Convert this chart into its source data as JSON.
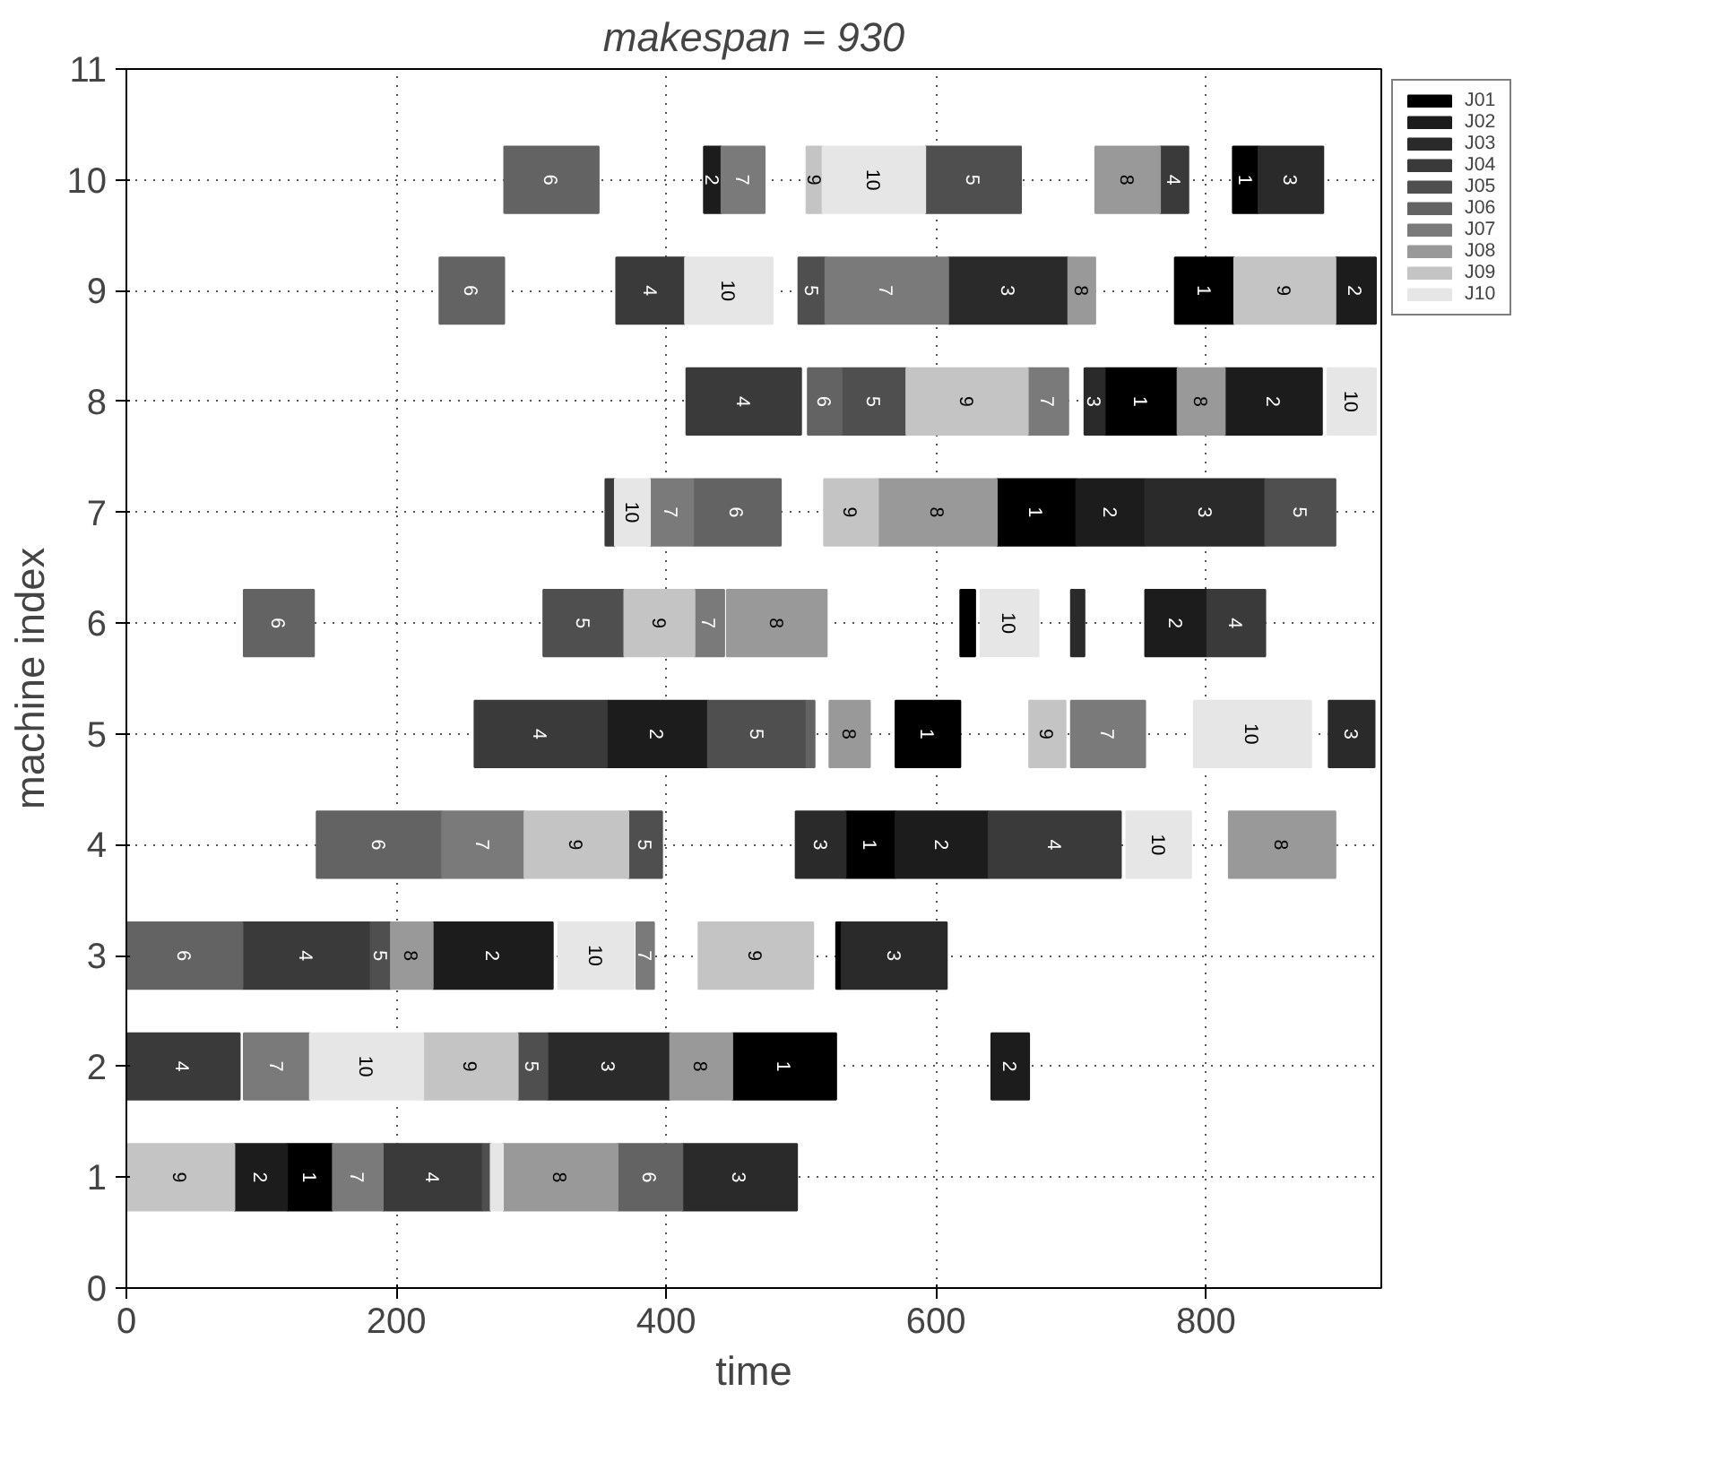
{
  "chart_data": {
    "type": "bar",
    "orientation": "horizontal",
    "title": "makespan = 930",
    "xlabel": "time",
    "ylabel": "machine index",
    "xlim": [
      0,
      930
    ],
    "ylim": [
      0,
      11
    ],
    "xticks": [
      0,
      200,
      400,
      600,
      800
    ],
    "yticks": [
      0,
      1,
      2,
      3,
      4,
      5,
      6,
      7,
      8,
      9,
      10,
      11
    ],
    "grid": true,
    "legend": "right",
    "series": [
      {
        "name": "J01",
        "color": "#000000",
        "x": [
          10,
          9,
          8,
          7,
          6,
          5,
          4,
          3,
          2,
          1
        ],
        "base": [
          820,
          777,
          725,
          645,
          618,
          570,
          533,
          526,
          449,
          119
        ],
        "values": [
          19,
          44,
          54,
          59,
          11,
          48,
          37,
          4,
          77,
          34
        ]
      },
      {
        "name": "J02",
        "color": "#1c1c1c",
        "x": [
          10,
          9,
          8,
          7,
          6,
          5,
          4,
          3,
          2,
          1
        ],
        "base": [
          428,
          896,
          814,
          704,
          755,
          356,
          570,
          227,
          641,
          80
        ],
        "values": [
          13,
          30,
          72,
          51,
          46,
          75,
          69,
          89,
          28,
          39
        ]
      },
      {
        "name": "J03",
        "color": "#2a2a2a",
        "x": [
          10,
          9,
          8,
          7,
          6,
          5,
          4,
          3,
          2,
          1
        ],
        "base": [
          839,
          609,
          710,
          755,
          700,
          891,
          496,
          530,
          312,
          412
        ],
        "values": [
          48,
          89,
          15,
          89,
          10,
          34,
          37,
          78,
          91,
          85
        ]
      },
      {
        "name": "J04",
        "color": "#3a3a3a",
        "x": [
          10,
          9,
          8,
          7,
          6,
          5,
          4,
          3,
          2,
          1
        ],
        "base": [
          766,
          363,
          415,
          355,
          801,
          258,
          639,
          86,
          0,
          190
        ],
        "values": [
          21,
          51,
          85,
          7,
          43,
          98,
          98,
          95,
          84,
          74
        ]
      },
      {
        "name": "J05",
        "color": "#4f4f4f",
        "x": [
          10,
          9,
          8,
          7,
          6,
          5,
          4,
          3,
          2,
          1
        ],
        "base": [
          592,
          498,
          530,
          844,
          309,
          431,
          372,
          181,
          290,
          264
        ],
        "values": [
          71,
          20,
          48,
          52,
          60,
          73,
          25,
          15,
          22,
          6
        ]
      },
      {
        "name": "J06",
        "color": "#636363",
        "x": [
          10,
          9,
          8,
          7,
          6,
          5,
          4,
          3,
          1
        ],
        "base": [
          280,
          232,
          505,
          420,
          87,
          504,
          141,
          0,
          364
        ],
        "values": [
          70,
          48,
          25,
          65,
          52,
          6,
          93,
          86,
          48
        ]
      },
      {
        "name": "J07",
        "color": "#7a7a7a",
        "x": [
          10,
          9,
          8,
          7,
          6,
          5,
          4,
          3,
          2,
          1
        ],
        "base": [
          441,
          518,
          668,
          388,
          421,
          700,
          234,
          378,
          87,
          153
        ],
        "values": [
          32,
          91,
          30,
          32,
          22,
          55,
          61,
          13,
          49,
          37
        ]
      },
      {
        "name": "J08",
        "color": "#999999",
        "x": [
          10,
          9,
          8,
          7,
          6,
          5,
          4,
          3,
          2,
          1
        ],
        "base": [
          718,
          698,
          779,
          557,
          445,
          521,
          817,
          196,
          403,
          279
        ],
        "values": [
          48,
          20,
          35,
          88,
          74,
          30,
          79,
          31,
          46,
          85
        ]
      },
      {
        "name": "J09",
        "color": "#c4c4c4",
        "x": [
          10,
          9,
          8,
          7,
          6,
          5,
          4,
          3,
          2,
          1
        ],
        "base": [
          504,
          821,
          578,
          517,
          369,
          669,
          295,
          424,
          220,
          0
        ],
        "values": [
          12,
          75,
          90,
          40,
          52,
          27,
          77,
          85,
          70,
          80
        ]
      },
      {
        "name": "J10",
        "color": "#e6e6e6",
        "x": [
          10,
          9,
          8,
          7,
          6,
          5,
          4,
          3,
          2,
          1
        ],
        "base": [
          516,
          414,
          890,
          362,
          633,
          791,
          741,
          320,
          136,
          270
        ],
        "values": [
          76,
          65,
          36,
          26,
          43,
          87,
          48,
          56,
          84,
          9
        ]
      }
    ],
    "annotations": [
      "1",
      "1",
      "1",
      "1",
      "1",
      "1",
      "1",
      "1",
      "2",
      "2",
      "2",
      "2",
      "2",
      "2",
      "2",
      "2",
      "2",
      "2",
      "3",
      "3",
      "3",
      "3",
      "3",
      "3",
      "3",
      "3",
      "3",
      "4",
      "4",
      "4",
      "4",
      "4",
      "4",
      "4",
      "4",
      "4",
      "5",
      "5",
      "5",
      "5",
      "5",
      "5",
      "5",
      "5",
      "5",
      "6",
      "6",
      "6",
      "6",
      "6",
      "6",
      "6",
      "6",
      "7",
      "7",
      "7",
      "7",
      "7",
      "7",
      "7",
      "7",
      "7",
      "7",
      "8",
      "8",
      "8",
      "8",
      "8",
      "8",
      "8",
      "8",
      "8",
      "8",
      "9",
      "9",
      "9",
      "9",
      "9",
      "9",
      "9",
      "9",
      "9",
      "9",
      "10",
      "10",
      "10",
      "10",
      "10",
      "10",
      "10",
      "10",
      "10"
    ]
  }
}
